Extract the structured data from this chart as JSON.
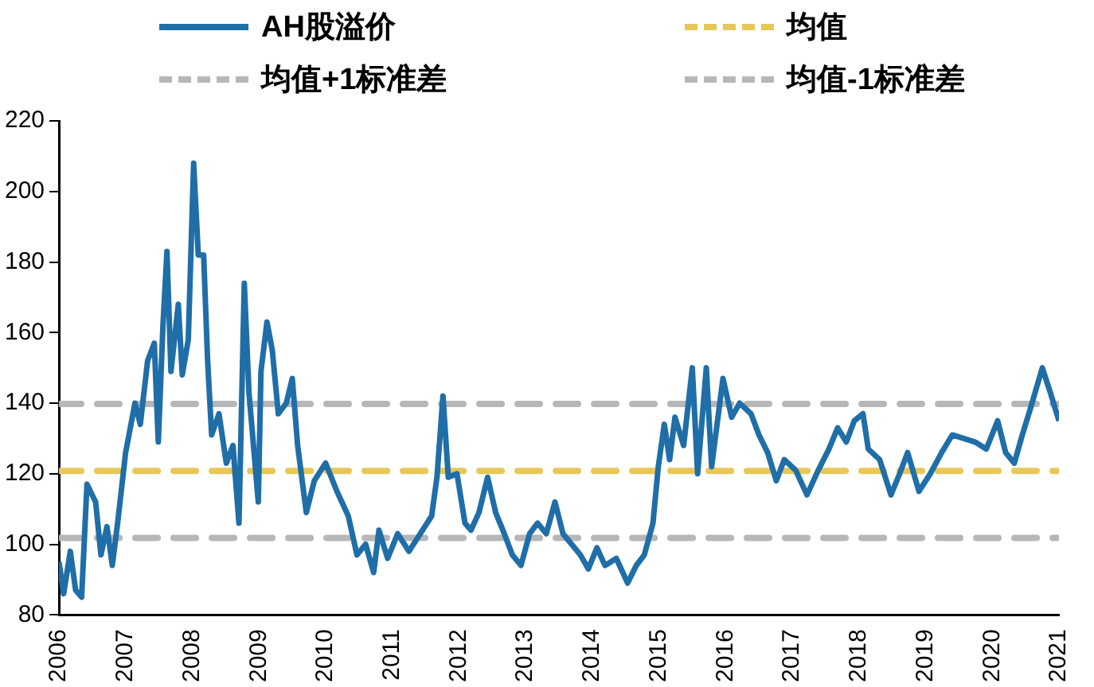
{
  "chart_data": {
    "type": "line",
    "xlim": [
      2006,
      2021
    ],
    "xticks": [
      2006,
      2007,
      2008,
      2009,
      2010,
      2011,
      2012,
      2013,
      2014,
      2015,
      2016,
      2017,
      2018,
      2019,
      2020,
      2021
    ],
    "ylim": [
      80,
      220
    ],
    "yticks": [
      80,
      100,
      120,
      140,
      160,
      180,
      200,
      220
    ],
    "grid": false,
    "legend": "top",
    "marker": "none",
    "series": [
      {
        "name": "AH股溢价",
        "color": "#1f6ea8",
        "line_style": "solid",
        "x": [
          2006.0,
          2006.07,
          2006.17,
          2006.25,
          2006.34,
          2006.42,
          2006.55,
          2006.63,
          2006.72,
          2006.8,
          2006.88,
          2007.0,
          2007.14,
          2007.22,
          2007.33,
          2007.43,
          2007.49,
          2007.56,
          2007.62,
          2007.68,
          2007.79,
          2007.85,
          2007.94,
          2008.02,
          2008.09,
          2008.17,
          2008.23,
          2008.29,
          2008.4,
          2008.51,
          2008.61,
          2008.7,
          2008.78,
          2008.85,
          2008.99,
          2009.03,
          2009.12,
          2009.2,
          2009.29,
          2009.41,
          2009.5,
          2009.58,
          2009.71,
          2009.83,
          2010.0,
          2010.17,
          2010.34,
          2010.47,
          2010.6,
          2010.72,
          2010.8,
          2010.93,
          2011.08,
          2011.25,
          2011.42,
          2011.59,
          2011.67,
          2011.76,
          2011.84,
          2011.97,
          2012.09,
          2012.18,
          2012.3,
          2012.43,
          2012.55,
          2012.68,
          2012.8,
          2012.93,
          2013.06,
          2013.18,
          2013.31,
          2013.44,
          2013.56,
          2013.69,
          2013.82,
          2013.94,
          2014.07,
          2014.19,
          2014.36,
          2014.53,
          2014.66,
          2014.78,
          2014.91,
          2014.99,
          2015.08,
          2015.16,
          2015.24,
          2015.37,
          2015.5,
          2015.58,
          2015.71,
          2015.79,
          2015.96,
          2016.09,
          2016.21,
          2016.38,
          2016.5,
          2016.63,
          2016.76,
          2016.88,
          2017.05,
          2017.22,
          2017.39,
          2017.55,
          2017.68,
          2017.81,
          2017.93,
          2018.06,
          2018.14,
          2018.31,
          2018.48,
          2018.61,
          2018.73,
          2018.9,
          2019.07,
          2019.24,
          2019.4,
          2019.57,
          2019.74,
          2019.91,
          2020.08,
          2020.2,
          2020.33,
          2020.45,
          2020.58,
          2020.75,
          2020.87,
          2021.0
        ],
        "values": [
          95,
          86,
          98,
          87,
          85,
          117,
          112,
          97,
          105,
          94,
          106,
          126,
          140,
          134,
          152,
          157,
          129,
          162,
          183,
          149,
          168,
          148,
          158,
          208,
          182,
          182,
          152,
          131,
          137,
          123,
          128,
          106,
          174,
          143,
          112,
          149,
          163,
          155,
          137,
          140,
          147,
          128,
          109,
          118,
          123,
          115,
          108,
          97,
          100,
          92,
          104,
          96,
          103,
          98,
          103,
          108,
          119,
          142,
          119,
          120,
          106,
          104,
          109,
          119,
          109,
          103,
          97,
          94,
          103,
          106,
          103,
          112,
          103,
          100,
          97,
          93,
          99,
          94,
          96,
          89,
          94,
          97,
          106,
          122,
          134,
          124,
          136,
          128,
          150,
          120,
          150,
          122,
          147,
          136,
          140,
          137,
          131,
          126,
          118,
          124,
          121,
          114,
          121,
          127,
          133,
          129,
          135,
          137,
          127,
          124,
          114,
          120,
          126,
          115,
          120,
          126,
          131,
          130,
          129,
          127,
          135,
          126,
          123,
          131,
          139,
          150,
          143,
          135
        ]
      },
      {
        "name": "均值",
        "color": "#e8c75a",
        "line_style": "dashed",
        "x": [
          2006,
          2021
        ],
        "values": [
          120.8,
          120.8
        ]
      },
      {
        "name": "均值+1标准差",
        "color": "#b7b7b7",
        "line_style": "dashed",
        "x": [
          2006,
          2021
        ],
        "values": [
          139.8,
          139.8
        ]
      },
      {
        "name": "均值-1标准差",
        "color": "#b7b7b7",
        "line_style": "dashed",
        "x": [
          2006,
          2021
        ],
        "values": [
          101.8,
          101.8
        ]
      }
    ]
  }
}
